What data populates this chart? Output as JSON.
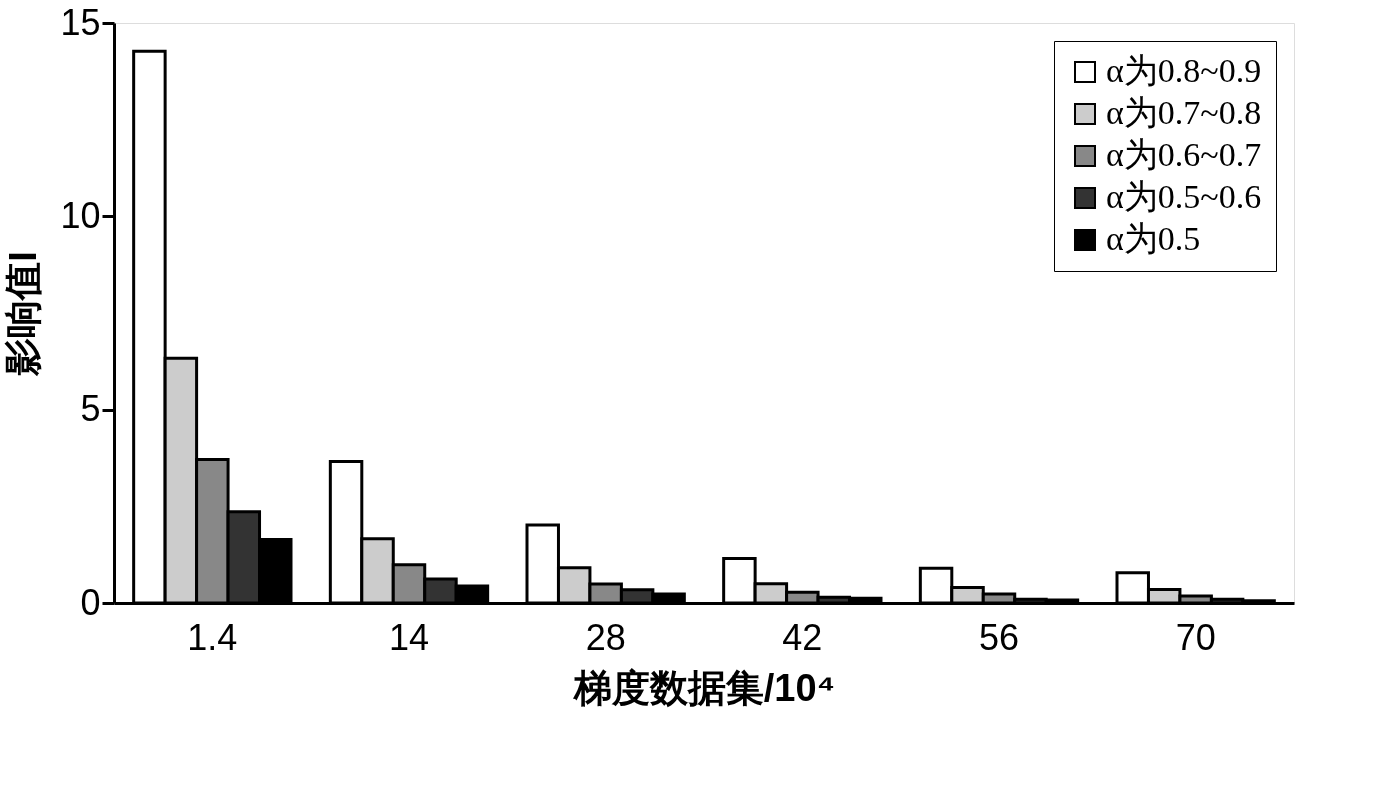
{
  "chart_data": {
    "type": "bar",
    "xlabel": "梯度数据集/10⁴",
    "ylabel": "影响值I",
    "categories": [
      "1.4",
      "14",
      "28",
      "42",
      "56",
      "70"
    ],
    "series": [
      {
        "name": "α为0.8~0.9",
        "color": "#ffffff",
        "values": [
          14.27,
          3.66,
          2.02,
          1.15,
          0.9,
          0.78
        ]
      },
      {
        "name": "α为0.7~0.8",
        "color": "#cccccc",
        "values": [
          6.33,
          1.66,
          0.91,
          0.5,
          0.4,
          0.35
        ]
      },
      {
        "name": "α为0.6~0.7",
        "color": "#888888",
        "values": [
          3.71,
          0.99,
          0.49,
          0.28,
          0.23,
          0.18
        ]
      },
      {
        "name": "α为0.5~0.6",
        "color": "#333333",
        "values": [
          2.36,
          0.62,
          0.34,
          0.15,
          0.1,
          0.1
        ]
      },
      {
        "name": "α为0.5",
        "color": "#000000",
        "values": [
          1.64,
          0.44,
          0.23,
          0.12,
          0.08,
          0.06
        ]
      }
    ],
    "ylim": [
      0,
      15
    ],
    "yticks": [
      0,
      5,
      10,
      15
    ],
    "grid": false,
    "legend": "top right"
  }
}
